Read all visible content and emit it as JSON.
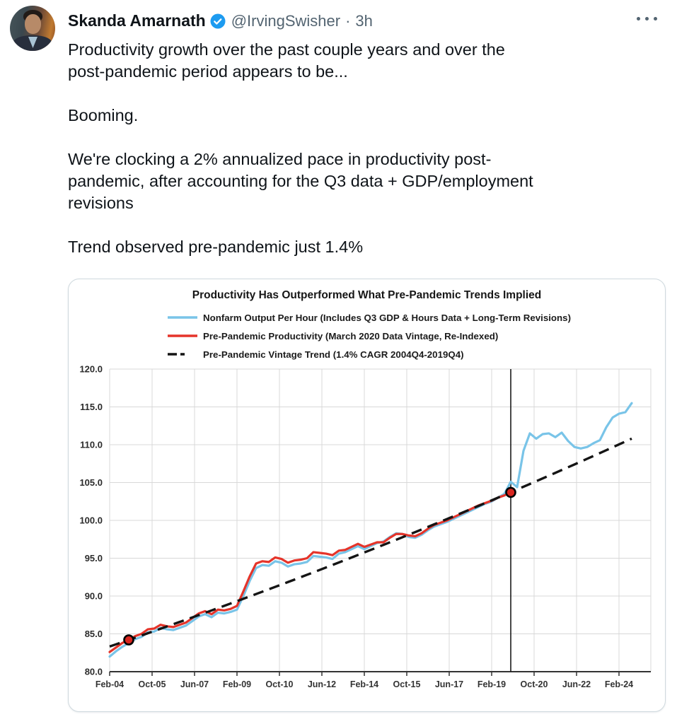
{
  "tweet": {
    "author": "Skanda Amarnath",
    "handle": "@IrvingSwisher",
    "separator": "·",
    "timestamp": "3h",
    "lines": [
      "Productivity growth over the past couple years and over the",
      "post-pandemic period appears to be...",
      "Booming.",
      "We're clocking a 2% annualized pace in productivity post-",
      "pandemic, after accounting for the Q3 data + GDP/employment",
      "revisions",
      "Trend observed pre-pandemic just 1.4%"
    ]
  },
  "chart_data": {
    "type": "line",
    "title": "Productivity Has Outperformed What Pre-Pandemic Trends Implied",
    "x_axis": {
      "domain_months": [
        1,
        256
      ],
      "ticks": [
        {
          "month": 1,
          "label": "Feb-04"
        },
        {
          "month": 21,
          "label": "Oct-05"
        },
        {
          "month": 41,
          "label": "Jun-07"
        },
        {
          "month": 61,
          "label": "Feb-09"
        },
        {
          "month": 81,
          "label": "Oct-10"
        },
        {
          "month": 101,
          "label": "Jun-12"
        },
        {
          "month": 121,
          "label": "Feb-14"
        },
        {
          "month": 141,
          "label": "Oct-15"
        },
        {
          "month": 161,
          "label": "Jun-17"
        },
        {
          "month": 181,
          "label": "Feb-19"
        },
        {
          "month": 201,
          "label": "Oct-20"
        },
        {
          "month": 221,
          "label": "Jun-22"
        },
        {
          "month": 241,
          "label": "Feb-24"
        }
      ]
    },
    "y_axis": {
      "min": 80,
      "max": 120,
      "step": 5,
      "ticks": [
        {
          "value": 120,
          "label": "120.0"
        },
        {
          "value": 115,
          "label": "115.0"
        },
        {
          "value": 110,
          "label": "110.0"
        },
        {
          "value": 105,
          "label": "105.0"
        },
        {
          "value": 100,
          "label": "100.0"
        },
        {
          "value": 95,
          "label": "95.0"
        },
        {
          "value": 90,
          "label": "90.0"
        },
        {
          "value": 85,
          "label": "85.0"
        },
        {
          "value": 80,
          "label": "80.0"
        }
      ]
    },
    "series": [
      {
        "name": "Nonfarm Output Per Hour (Includes Q3 GDP & Hours Data + Long-Term Revisions)",
        "color": "#79c4e8",
        "style": "solid",
        "start_quarter": "2004Q1",
        "start_month": 1,
        "step_months": 3,
        "values": [
          82.0,
          82.7,
          83.3,
          83.8,
          84.3,
          84.6,
          85.2,
          85.3,
          85.8,
          85.6,
          85.5,
          85.8,
          86.1,
          86.7,
          87.3,
          87.6,
          87.2,
          87.8,
          87.7,
          87.9,
          88.2,
          90.0,
          92.0,
          93.7,
          94.1,
          94.0,
          94.6,
          94.4,
          93.9,
          94.2,
          94.3,
          94.5,
          95.3,
          95.2,
          95.1,
          94.9,
          95.6,
          95.8,
          96.2,
          96.6,
          96.2,
          96.6,
          97.0,
          97.2,
          97.8,
          98.3,
          98.2,
          97.8,
          97.7,
          98.1,
          98.7,
          99.2,
          99.5,
          99.8,
          100.2,
          100.6,
          101.0,
          101.4,
          101.8,
          102.2,
          102.5,
          103.0,
          103.5,
          105.1,
          104.4,
          109.2,
          111.5,
          110.8,
          111.4,
          111.5,
          111.0,
          111.6,
          110.5,
          109.7,
          109.5,
          109.7,
          110.2,
          110.6,
          112.3,
          113.6,
          114.1,
          114.3,
          115.5
        ]
      },
      {
        "name": "Pre-Pandemic Productivity (March 2020 Data Vintage, Re-Indexed)",
        "color": "#e5342a",
        "style": "solid",
        "start_quarter": "2004Q1",
        "start_month": 1,
        "step_months": 3,
        "values": [
          82.6,
          83.2,
          83.8,
          84.2,
          84.7,
          85.0,
          85.6,
          85.7,
          86.2,
          86.0,
          85.9,
          86.2,
          86.5,
          87.1,
          87.7,
          88.0,
          87.6,
          88.2,
          88.1,
          88.3,
          88.7,
          90.6,
          92.6,
          94.3,
          94.6,
          94.5,
          95.1,
          94.9,
          94.4,
          94.7,
          94.8,
          95.0,
          95.8,
          95.7,
          95.6,
          95.4,
          96.0,
          96.1,
          96.5,
          96.9,
          96.5,
          96.8,
          97.1,
          97.1,
          97.7,
          98.2,
          98.2,
          98.0,
          97.9,
          98.3,
          98.9,
          99.4,
          99.7,
          100.0,
          100.4,
          100.8,
          101.2,
          101.6,
          102.0,
          102.3,
          102.6,
          103.0,
          103.3,
          103.7
        ]
      },
      {
        "name": "Pre-Pandemic Vintage Trend (1.4% CAGR 2004Q4-2019Q4)",
        "color": "#141414",
        "style": "dashed",
        "trend": {
          "anchor_month": 10,
          "anchor_value": 84.2,
          "cagr_pct": 1.4,
          "from_month": 1,
          "to_month": 247
        }
      }
    ],
    "annotations": {
      "vline_month": 190,
      "markers": [
        {
          "quarter": "2004Q4",
          "month": 10,
          "value": 84.2
        },
        {
          "quarter": "2019Q4",
          "month": 190,
          "value": 103.7
        }
      ]
    },
    "style": {
      "grid_color": "#d8d8d8",
      "axis_color": "#333333",
      "marker_fill": "#d8261f",
      "vline_color": "#1a1a1a"
    }
  },
  "theme": {
    "text_color": "#0f1419",
    "secondary_color": "#536471",
    "badge_color": "#1d9bf0",
    "card_border": "#cfd9de"
  }
}
